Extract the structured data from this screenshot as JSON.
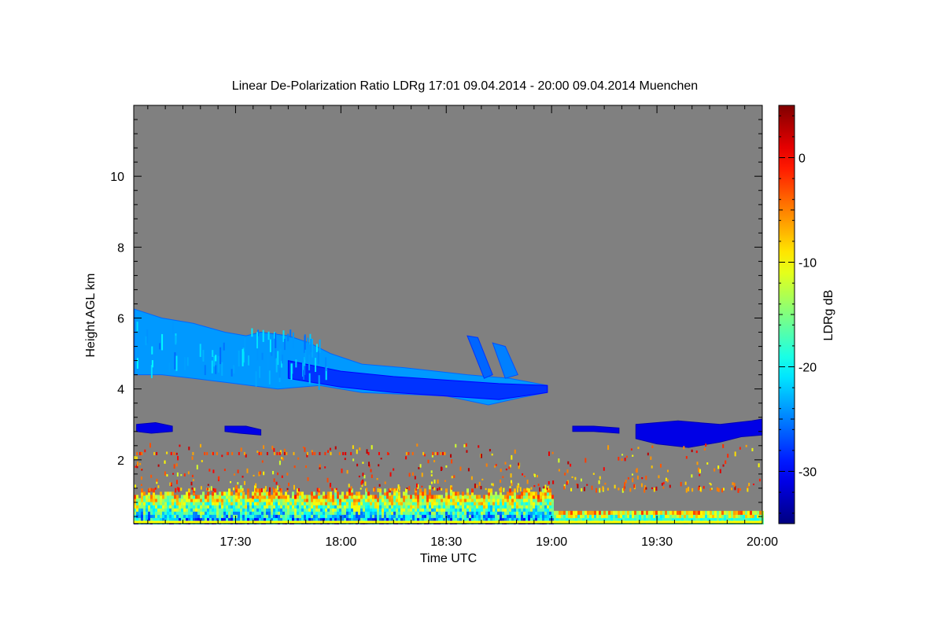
{
  "chart_data": {
    "type": "heatmap",
    "title": "Linear De-Polarization Ratio LDRg   17:01 09.04.2014 - 20:00 09.04.2014 Muenchen",
    "xlabel": "Time UTC",
    "ylabel": "Height AGL km",
    "x_range_hours": [
      17.0167,
      20.0
    ],
    "y_range_km": [
      0.2,
      12.0
    ],
    "x_ticks": [
      {
        "hours": 17.5,
        "label": "17:30"
      },
      {
        "hours": 18.0,
        "label": "18:00"
      },
      {
        "hours": 18.5,
        "label": "18:30"
      },
      {
        "hours": 19.0,
        "label": "19:00"
      },
      {
        "hours": 19.5,
        "label": "19:30"
      },
      {
        "hours": 20.0,
        "label": "20:00"
      }
    ],
    "y_ticks": [
      {
        "km": 2,
        "label": "2"
      },
      {
        "km": 4,
        "label": "4"
      },
      {
        "km": 6,
        "label": "6"
      },
      {
        "km": 8,
        "label": "8"
      },
      {
        "km": 10,
        "label": "10"
      }
    ],
    "background_color": "#808080",
    "colorbar": {
      "label": "LDRg dB",
      "range": [
        -35,
        5
      ],
      "colormap": "jet",
      "ticks": [
        {
          "value": 0,
          "label": "0"
        },
        {
          "value": -10,
          "label": "-10"
        },
        {
          "value": -20,
          "label": "-20"
        },
        {
          "value": -30,
          "label": "-30"
        }
      ]
    },
    "layers": [
      {
        "name": "cirrus-layer",
        "ldr": -24,
        "top": [
          [
            17.02,
            6.25
          ],
          [
            17.15,
            6.0
          ],
          [
            17.3,
            5.85
          ],
          [
            17.45,
            5.6
          ],
          [
            17.55,
            5.5
          ],
          [
            17.62,
            5.6
          ],
          [
            17.75,
            5.5
          ],
          [
            17.85,
            5.3
          ],
          [
            17.95,
            5.0
          ],
          [
            18.1,
            4.7
          ],
          [
            18.3,
            4.6
          ],
          [
            18.45,
            4.5
          ],
          [
            18.6,
            4.4
          ],
          [
            18.8,
            4.3
          ],
          [
            18.98,
            4.1
          ]
        ],
        "bottom": [
          [
            18.98,
            3.9
          ],
          [
            18.85,
            3.75
          ],
          [
            18.7,
            3.55
          ],
          [
            18.5,
            3.8
          ],
          [
            18.3,
            3.85
          ],
          [
            18.1,
            3.9
          ],
          [
            17.9,
            4.1
          ],
          [
            17.7,
            4.0
          ],
          [
            17.5,
            4.15
          ],
          [
            17.3,
            4.3
          ],
          [
            17.15,
            4.4
          ],
          [
            17.02,
            4.4
          ]
        ]
      },
      {
        "name": "lower-cirrus-band",
        "ldr": -28,
        "top": [
          [
            17.75,
            4.8
          ],
          [
            18.0,
            4.5
          ],
          [
            18.25,
            4.35
          ],
          [
            18.5,
            4.25
          ],
          [
            18.75,
            4.15
          ],
          [
            18.98,
            4.1
          ]
        ],
        "bottom": [
          [
            18.98,
            3.9
          ],
          [
            18.75,
            3.7
          ],
          [
            18.5,
            3.8
          ],
          [
            18.25,
            3.9
          ],
          [
            18.0,
            4.05
          ],
          [
            17.75,
            4.3
          ]
        ]
      },
      {
        "name": "fallstreak-1",
        "ldr": -26,
        "top": [
          [
            18.6,
            5.5
          ],
          [
            18.65,
            5.45
          ],
          [
            18.72,
            4.4
          ],
          [
            18.68,
            4.3
          ]
        ],
        "bottom": []
      },
      {
        "name": "fallstreak-2",
        "ldr": -25,
        "top": [
          [
            18.72,
            5.3
          ],
          [
            18.78,
            5.2
          ],
          [
            18.84,
            4.4
          ],
          [
            18.78,
            4.3
          ]
        ],
        "bottom": []
      },
      {
        "name": "cloud-3km-a",
        "ldr": -31,
        "top": [
          [
            17.03,
            3.0
          ],
          [
            17.12,
            3.05
          ],
          [
            17.2,
            2.95
          ]
        ],
        "bottom": [
          [
            17.2,
            2.8
          ],
          [
            17.1,
            2.75
          ],
          [
            17.03,
            2.8
          ]
        ]
      },
      {
        "name": "cloud-3km-b",
        "ldr": -31,
        "top": [
          [
            17.45,
            2.95
          ],
          [
            17.55,
            2.95
          ],
          [
            17.62,
            2.85
          ]
        ],
        "bottom": [
          [
            17.62,
            2.7
          ],
          [
            17.52,
            2.75
          ],
          [
            17.45,
            2.8
          ]
        ]
      },
      {
        "name": "cloud-3km-c",
        "ldr": -31,
        "top": [
          [
            19.1,
            2.95
          ],
          [
            19.2,
            2.95
          ],
          [
            19.32,
            2.9
          ]
        ],
        "bottom": [
          [
            19.32,
            2.75
          ],
          [
            19.2,
            2.8
          ],
          [
            19.1,
            2.8
          ]
        ]
      },
      {
        "name": "cloud-3km-d",
        "ldr": -31,
        "top": [
          [
            19.4,
            3.0
          ],
          [
            19.6,
            3.1
          ],
          [
            19.8,
            3.0
          ],
          [
            19.95,
            3.1
          ],
          [
            20.0,
            3.15
          ]
        ],
        "bottom": [
          [
            20.0,
            2.7
          ],
          [
            19.9,
            2.65
          ],
          [
            19.8,
            2.5
          ],
          [
            19.65,
            2.35
          ],
          [
            19.5,
            2.45
          ],
          [
            19.4,
            2.6
          ]
        ]
      }
    ],
    "boundary_layer": {
      "description_levels_km": [
        0.2,
        1.2
      ],
      "ldr_range": [
        -25,
        -2
      ]
    }
  }
}
